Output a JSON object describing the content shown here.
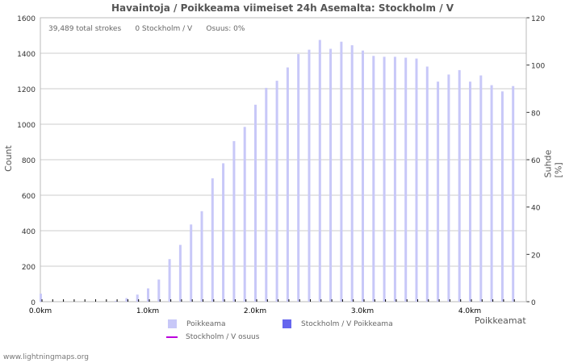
{
  "title": "Havaintoja / Poikkeama viimeiset 24h Asemalta: Stockholm / V",
  "stats": {
    "total": "39,489 total strokes",
    "station": "0 Stockholm / V",
    "share": "Osuus: 0%"
  },
  "axes": {
    "ylabel_left": "Count",
    "ylabel_right": "Suhde [%]",
    "xlabel": "Poikkeamat"
  },
  "legend": {
    "poikkeama": "Poikkeama",
    "station_poikkeama": "Stockholm / V Poikkeama",
    "station_osuus": "Stockholm / V osuus"
  },
  "footer": "www.lightningmaps.org",
  "colors": {
    "bar": "#c8c8f8",
    "station_bar": "#6666ee",
    "osuus_line": "#bb00dd"
  },
  "chart_data": {
    "type": "bar",
    "title": "Havaintoja / Poikkeama viimeiset 24h Asemalta: Stockholm / V",
    "xlabel": "Poikkeamat",
    "ylabel": "Count",
    "y2label": "Suhde [%]",
    "ylim": [
      0,
      1600
    ],
    "y2lim": [
      0,
      120
    ],
    "yticks": [
      0,
      200,
      400,
      600,
      800,
      1000,
      1200,
      1400,
      1600
    ],
    "y2ticks": [
      0,
      20,
      40,
      60,
      80,
      100,
      120
    ],
    "xticks": [
      "0.0km",
      "1.0km",
      "2.0km",
      "3.0km",
      "4.0km"
    ],
    "categories": [
      "0.0",
      "0.1",
      "0.2",
      "0.3",
      "0.4",
      "0.5",
      "0.6",
      "0.7",
      "0.8",
      "0.9",
      "1.0",
      "1.1",
      "1.2",
      "1.3",
      "1.4",
      "1.5",
      "1.6",
      "1.7",
      "1.8",
      "1.9",
      "2.0",
      "2.1",
      "2.2",
      "2.3",
      "2.4",
      "2.5",
      "2.6",
      "2.7",
      "2.8",
      "2.9",
      "3.0",
      "3.1",
      "3.2",
      "3.3",
      "3.4",
      "3.5",
      "3.6",
      "3.7",
      "3.8",
      "3.9",
      "4.0",
      "4.1",
      "4.2",
      "4.3",
      "4.4"
    ],
    "series": [
      {
        "name": "Poikkeama",
        "values": [
          45,
          0,
          0,
          0,
          0,
          0,
          0,
          5,
          20,
          40,
          75,
          125,
          240,
          320,
          435,
          510,
          695,
          780,
          905,
          985,
          1110,
          1205,
          1245,
          1320,
          1395,
          1420,
          1475,
          1425,
          1465,
          1445,
          1415,
          1385,
          1380,
          1380,
          1375,
          1370,
          1325,
          1240,
          1280,
          1305,
          1240,
          1275,
          1220,
          1185,
          1215
        ]
      },
      {
        "name": "Stockholm / V Poikkeama",
        "values": [
          0,
          0,
          0,
          0,
          0,
          0,
          0,
          0,
          0,
          0,
          0,
          0,
          0,
          0,
          0,
          0,
          0,
          0,
          0,
          0,
          0,
          0,
          0,
          0,
          0,
          0,
          0,
          0,
          0,
          0,
          0,
          0,
          0,
          0,
          0,
          0,
          0,
          0,
          0,
          0,
          0,
          0,
          0,
          0,
          0
        ]
      },
      {
        "name": "Stockholm / V osuus",
        "values": []
      }
    ],
    "legend_position": "bottom",
    "grid": true
  }
}
